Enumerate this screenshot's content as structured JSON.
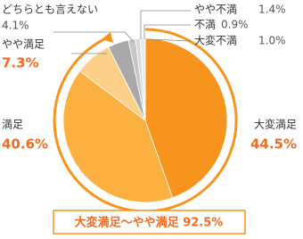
{
  "chart_data": {
    "type": "pie",
    "categories": [
      "大変満足",
      "満足",
      "やや満足",
      "どちらとも言えない",
      "やや不満",
      "不満",
      "大変不満"
    ],
    "values": [
      44.5,
      40.6,
      7.3,
      4.1,
      1.4,
      0.9,
      1.0
    ],
    "value_labels": [
      "44.5%",
      "40.6%",
      "7.3%",
      "4.1%",
      "1.4%",
      "0.9%",
      "1.0%"
    ],
    "colors": [
      "#f7941d",
      "#fbb040",
      "#fdd08a",
      "#a9a9a9",
      "#c6c6c6",
      "#d9d9d9",
      "#ebebeb"
    ],
    "annotation": "大変満足〜やや満足 92.5%"
  }
}
